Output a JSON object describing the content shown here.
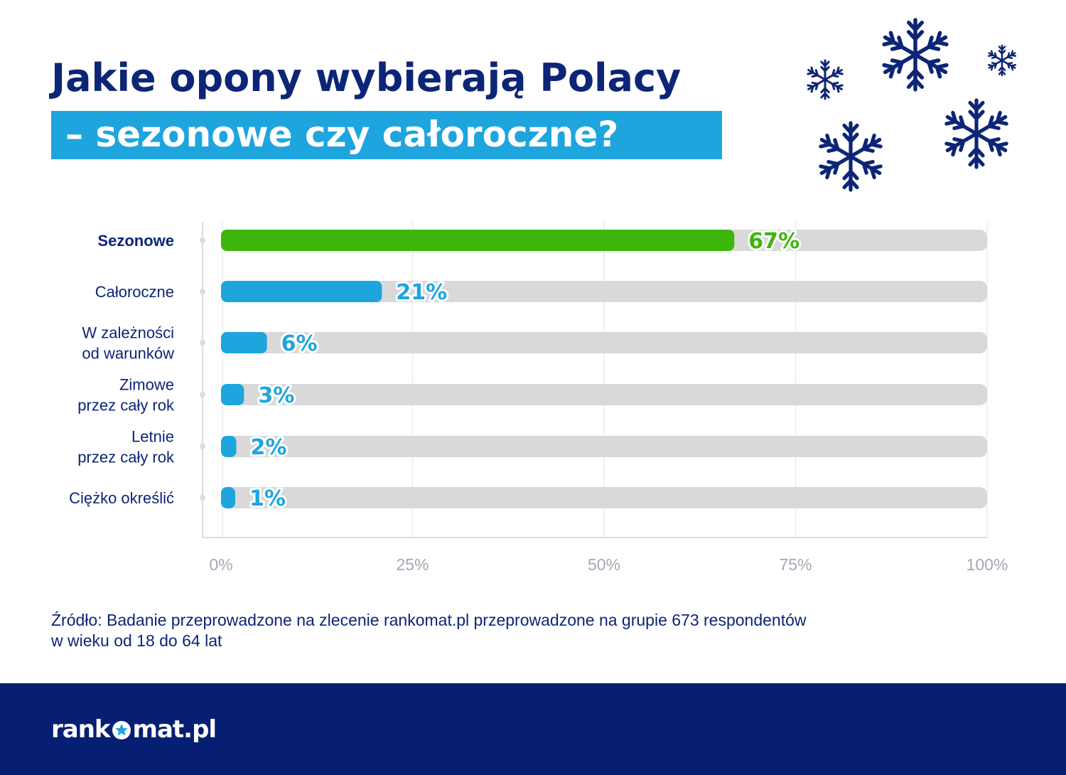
{
  "title": {
    "line1": "Jakie opony wybierają Polacy",
    "line2": "– sezonowe czy całoroczne?"
  },
  "colors": {
    "navy": "#0d2577",
    "highlight": "#1ea5de",
    "green": "#3db60b",
    "blue": "#1ea5de",
    "track": "#d9d9d9",
    "footer": "#061f73"
  },
  "icons": [
    "snowflake-icon",
    "star-icon"
  ],
  "chart_data": {
    "type": "bar",
    "orientation": "horizontal",
    "categories": [
      [
        "Sezonowe"
      ],
      [
        "Całoroczne"
      ],
      [
        "W zależności",
        "od warunków"
      ],
      [
        "Zimowe",
        "przez cały rok"
      ],
      [
        "Letnie",
        "przez cały rok"
      ],
      [
        "Ciężko określić"
      ]
    ],
    "values": [
      67,
      21,
      6,
      3,
      2,
      1
    ],
    "value_labels": [
      "67%",
      "21%",
      "6%",
      "3%",
      "2%",
      "1%"
    ],
    "xlim": [
      0,
      100
    ],
    "xticks": [
      0,
      25,
      50,
      75,
      100
    ],
    "xtick_labels": [
      "0%",
      "25%",
      "50%",
      "75%",
      "100%"
    ],
    "grid": true,
    "highlight_index": 0
  },
  "source": {
    "line1": "Źródło: Badanie przeprowadzone na zlecenie rankomat.pl przeprowadzone na grupie 673 respondentów",
    "line2": "w wieku od 18 do 64 lat"
  },
  "logo": {
    "left": "rank",
    "right": "mat.pl"
  }
}
